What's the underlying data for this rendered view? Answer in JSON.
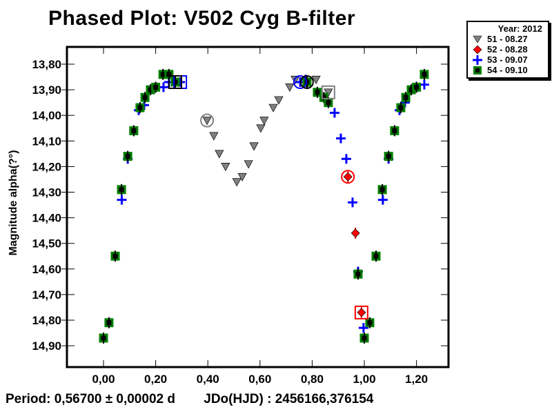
{
  "chart_data": {
    "type": "scatter",
    "title": "Phased Plot: V502 Cyg B-filter",
    "xlabel": "",
    "ylabel": "Magnitude alpha(?°)",
    "xlim": [
      -0.13,
      1.32
    ],
    "ylim": [
      13.73,
      14.99
    ],
    "y_inverted": true,
    "xticks": [
      0.0,
      0.2,
      0.4,
      0.6,
      0.8,
      1.0,
      1.2
    ],
    "xtick_labels": [
      "0,00",
      "0,20",
      "0,40",
      "0,60",
      "0,80",
      "1,00",
      "1,20"
    ],
    "yticks": [
      13.8,
      13.9,
      14.0,
      14.1,
      14.2,
      14.3,
      14.4,
      14.5,
      14.6,
      14.7,
      14.8,
      14.9
    ],
    "ytick_labels": [
      "13,80",
      "13,90",
      "14,00",
      "14,10",
      "14,20",
      "14,30",
      "14,40",
      "14,50",
      "14,60",
      "14,70",
      "14,80",
      "14,90"
    ],
    "grid": false,
    "legend_placement": "outside-top-right",
    "legend_title": "Year: 2012",
    "series": [
      {
        "name": "51 - 08.27",
        "marker": "triangle-down",
        "color": "#808080",
        "points": [
          [
            0.397,
            14.02
          ],
          [
            0.423,
            14.08
          ],
          [
            0.444,
            14.15
          ],
          [
            0.468,
            14.2
          ],
          [
            0.511,
            14.26
          ],
          [
            0.532,
            14.24
          ],
          [
            0.556,
            14.19
          ],
          [
            0.577,
            14.12
          ],
          [
            0.603,
            14.05
          ],
          [
            0.616,
            14.02
          ],
          [
            0.651,
            13.97
          ],
          [
            0.672,
            13.94
          ],
          [
            0.714,
            13.89
          ],
          [
            0.735,
            13.86
          ],
          [
            0.78,
            13.88
          ],
          [
            0.815,
            13.86
          ],
          [
            0.862,
            13.91
          ]
        ],
        "highlight_circle": [
          0.397,
          14.02
        ],
        "highlight_box": [
          0.862,
          13.91
        ]
      },
      {
        "name": "52 - 08.28",
        "marker": "diamond",
        "color": "#ff0000",
        "points": [
          [
            0.937,
            14.24
          ],
          [
            0.966,
            14.46
          ],
          [
            0.989,
            14.77
          ]
        ],
        "highlight_circle": [
          0.937,
          14.24
        ],
        "highlight_box": [
          0.989,
          14.77
        ]
      },
      {
        "name": "53 - 09.07",
        "marker": "plus",
        "color": "#0000ff",
        "points": [
          [
            0.07,
            14.33
          ],
          [
            0.093,
            14.17
          ],
          [
            0.135,
            13.98
          ],
          [
            0.156,
            13.96
          ],
          [
            0.23,
            13.89
          ],
          [
            0.251,
            13.87
          ],
          [
            0.294,
            13.87
          ],
          [
            0.754,
            13.87
          ],
          [
            0.775,
            13.86
          ],
          [
            0.886,
            13.99
          ],
          [
            0.91,
            14.09
          ],
          [
            0.931,
            14.17
          ],
          [
            0.955,
            14.34
          ],
          [
            0.976,
            14.61
          ],
          [
            0.997,
            14.83
          ],
          [
            1.071,
            14.33
          ],
          [
            1.093,
            14.17
          ],
          [
            1.135,
            13.98
          ],
          [
            1.156,
            13.95
          ],
          [
            1.23,
            13.88
          ]
        ],
        "highlight_circle": [
          0.754,
          13.87
        ],
        "highlight_box": [
          0.294,
          13.87
        ]
      },
      {
        "name": "54 - 09.10",
        "marker": "square",
        "color": "#008000",
        "points": [
          [
            0.0,
            14.87
          ],
          [
            0.021,
            14.81
          ],
          [
            0.045,
            14.55
          ],
          [
            0.069,
            14.29
          ],
          [
            0.093,
            14.16
          ],
          [
            0.116,
            14.06
          ],
          [
            0.14,
            13.97
          ],
          [
            0.159,
            13.93
          ],
          [
            0.18,
            13.9
          ],
          [
            0.2,
            13.89
          ],
          [
            0.228,
            13.84
          ],
          [
            0.251,
            13.84
          ],
          [
            0.275,
            13.87
          ],
          [
            0.78,
            13.87
          ],
          [
            0.82,
            13.91
          ],
          [
            0.845,
            13.93
          ],
          [
            0.862,
            13.95
          ],
          [
            0.976,
            14.62
          ],
          [
            1.0,
            14.87
          ],
          [
            1.021,
            14.81
          ],
          [
            1.045,
            14.55
          ],
          [
            1.069,
            14.29
          ],
          [
            1.093,
            14.16
          ],
          [
            1.116,
            14.06
          ],
          [
            1.14,
            13.97
          ],
          [
            1.159,
            13.93
          ],
          [
            1.18,
            13.9
          ],
          [
            1.2,
            13.89
          ],
          [
            1.23,
            13.84
          ]
        ],
        "highlight_circle": [
          0.78,
          13.87
        ],
        "highlight_box": [
          0.275,
          13.87
        ]
      }
    ]
  },
  "footer": {
    "period": "Period: 0,56700 ± 0,00002 d",
    "epoch": "JDo(HJD) : 2456166,376154"
  }
}
